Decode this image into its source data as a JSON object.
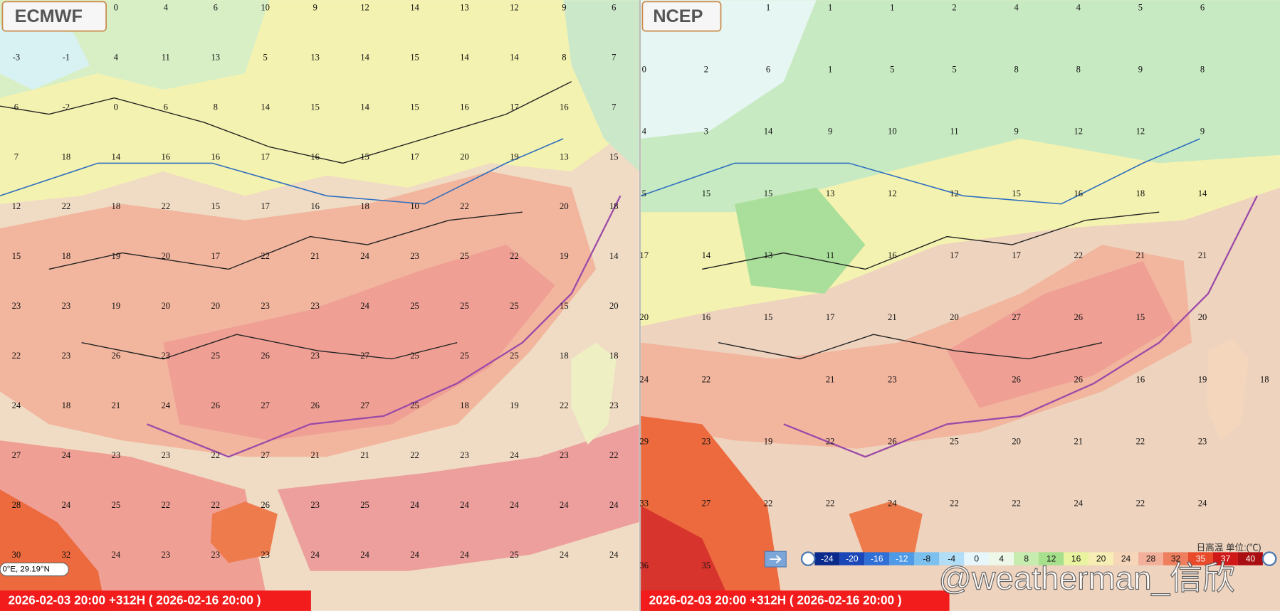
{
  "panels": [
    {
      "model": "ECMWF",
      "footer": "2026-02-03 20:00 +312H ( 2026-02-16 20:00 )",
      "coordinate": "0°E, 29.19°N",
      "grid": [
        [
          null,
          null,
          0,
          4,
          6,
          10,
          9,
          12,
          14,
          13,
          12,
          9,
          6
        ],
        [
          -3,
          -1,
          4,
          11,
          13,
          5,
          13,
          14,
          15,
          14,
          14,
          8,
          7
        ],
        [
          6,
          -2,
          0,
          6,
          8,
          14,
          15,
          14,
          15,
          16,
          17,
          16,
          7
        ],
        [
          7,
          18,
          14,
          16,
          16,
          17,
          16,
          15,
          17,
          20,
          19,
          13,
          15
        ],
        [
          12,
          22,
          18,
          22,
          15,
          17,
          16,
          18,
          10,
          22,
          null,
          20,
          18
        ],
        [
          15,
          18,
          19,
          20,
          17,
          22,
          21,
          24,
          23,
          25,
          22,
          19,
          14
        ],
        [
          23,
          23,
          19,
          20,
          20,
          23,
          23,
          24,
          25,
          25,
          25,
          15,
          20
        ],
        [
          22,
          23,
          26,
          23,
          25,
          26,
          23,
          27,
          25,
          25,
          25,
          18,
          18
        ],
        [
          24,
          18,
          21,
          24,
          26,
          27,
          26,
          27,
          25,
          18,
          19,
          22,
          23
        ],
        [
          27,
          24,
          23,
          23,
          22,
          27,
          21,
          21,
          22,
          23,
          24,
          23,
          22
        ],
        [
          28,
          24,
          25,
          22,
          22,
          26,
          23,
          25,
          24,
          24,
          24,
          24,
          24
        ],
        [
          30,
          32,
          24,
          23,
          23,
          23,
          24,
          24,
          24,
          24,
          25,
          24,
          24
        ]
      ]
    },
    {
      "model": "NCEP",
      "footer": "2026-02-03 20:00 +312H ( 2026-02-16 20:00 )",
      "grid": [
        [
          null,
          null,
          1,
          1,
          1,
          2,
          4,
          4,
          5,
          6,
          null
        ],
        [
          0,
          2,
          6,
          1,
          5,
          5,
          8,
          8,
          9,
          8,
          null
        ],
        [
          4,
          3,
          14,
          9,
          10,
          11,
          9,
          12,
          12,
          9,
          null
        ],
        [
          5,
          15,
          15,
          13,
          12,
          12,
          15,
          16,
          18,
          14,
          null
        ],
        [
          17,
          14,
          13,
          11,
          16,
          17,
          17,
          22,
          21,
          21,
          null
        ],
        [
          20,
          16,
          15,
          17,
          21,
          20,
          27,
          26,
          15,
          20,
          null
        ],
        [
          24,
          22,
          null,
          21,
          23,
          null,
          26,
          26,
          16,
          19,
          18
        ],
        [
          29,
          23,
          19,
          22,
          26,
          25,
          20,
          21,
          22,
          23,
          null
        ],
        [
          33,
          27,
          22,
          22,
          24,
          22,
          22,
          24,
          22,
          24,
          null
        ],
        [
          36,
          35,
          null,
          null,
          null,
          null,
          null,
          null,
          null,
          null,
          null
        ]
      ]
    }
  ],
  "legend": {
    "title": "日高温 单位:(℃)",
    "ticks": [
      -24,
      -20,
      -16,
      -12,
      -8,
      -4,
      0,
      4,
      8,
      12,
      16,
      20,
      24,
      28,
      32,
      35,
      37,
      40
    ]
  },
  "watermark": "@weatherman_信欣"
}
